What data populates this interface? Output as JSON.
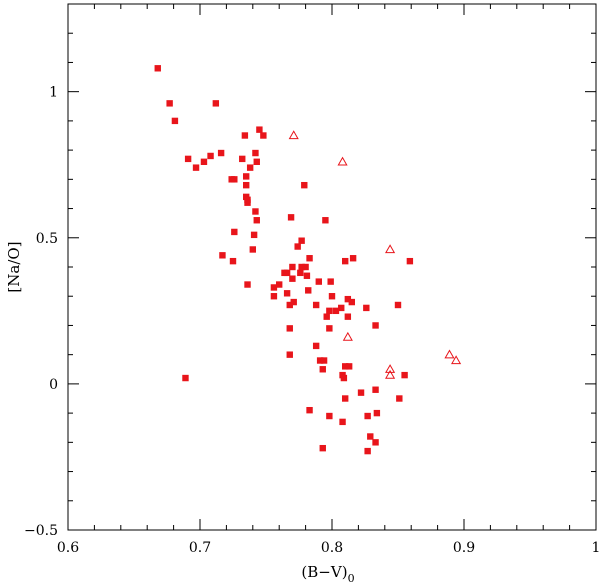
{
  "chart_data": {
    "type": "scatter",
    "title": "",
    "xlabel": "(B−V)",
    "xlabel_subscript": "0",
    "ylabel": "[Na/O]",
    "xlim": [
      0.6,
      1.0
    ],
    "ylim": [
      -0.5,
      1.3
    ],
    "x_ticks": [
      {
        "value": 0.6,
        "label": "0.6"
      },
      {
        "value": 0.7,
        "label": "0.7"
      },
      {
        "value": 0.8,
        "label": "0.8"
      },
      {
        "value": 0.9,
        "label": "0.9"
      },
      {
        "value": 1.0,
        "label": "1"
      }
    ],
    "y_ticks": [
      {
        "value": -0.5,
        "label": "−0.5"
      },
      {
        "value": 0,
        "label": "0"
      },
      {
        "value": 0.5,
        "label": "0.5"
      },
      {
        "value": 1,
        "label": "1"
      }
    ],
    "grid": false,
    "legend": "none",
    "colors": {
      "marker": "#e8151b",
      "axis": "#000000"
    },
    "series": [
      {
        "marker": "filled-square",
        "points": [
          [
            0.668,
            1.08
          ],
          [
            0.677,
            0.96
          ],
          [
            0.681,
            0.9
          ],
          [
            0.712,
            0.96
          ],
          [
            0.745,
            0.87
          ],
          [
            0.748,
            0.85
          ],
          [
            0.734,
            0.85
          ],
          [
            0.691,
            0.77
          ],
          [
            0.697,
            0.74
          ],
          [
            0.703,
            0.76
          ],
          [
            0.708,
            0.78
          ],
          [
            0.716,
            0.79
          ],
          [
            0.732,
            0.77
          ],
          [
            0.742,
            0.79
          ],
          [
            0.743,
            0.76
          ],
          [
            0.738,
            0.74
          ],
          [
            0.735,
            0.71
          ],
          [
            0.724,
            0.7
          ],
          [
            0.726,
            0.7
          ],
          [
            0.735,
            0.68
          ],
          [
            0.735,
            0.64
          ],
          [
            0.736,
            0.63
          ],
          [
            0.736,
            0.62
          ],
          [
            0.742,
            0.59
          ],
          [
            0.743,
            0.56
          ],
          [
            0.726,
            0.52
          ],
          [
            0.741,
            0.51
          ],
          [
            0.74,
            0.46
          ],
          [
            0.717,
            0.44
          ],
          [
            0.725,
            0.42
          ],
          [
            0.736,
            0.34
          ],
          [
            0.689,
            0.02
          ],
          [
            0.779,
            0.68
          ],
          [
            0.769,
            0.57
          ],
          [
            0.795,
            0.56
          ],
          [
            0.774,
            0.47
          ],
          [
            0.777,
            0.49
          ],
          [
            0.81,
            0.42
          ],
          [
            0.816,
            0.43
          ],
          [
            0.859,
            0.42
          ],
          [
            0.764,
            0.38
          ],
          [
            0.77,
            0.4
          ],
          [
            0.777,
            0.4
          ],
          [
            0.766,
            0.38
          ],
          [
            0.77,
            0.36
          ],
          [
            0.78,
            0.4
          ],
          [
            0.783,
            0.43
          ],
          [
            0.776,
            0.38
          ],
          [
            0.781,
            0.37
          ],
          [
            0.756,
            0.33
          ],
          [
            0.76,
            0.34
          ],
          [
            0.756,
            0.3
          ],
          [
            0.766,
            0.31
          ],
          [
            0.768,
            0.27
          ],
          [
            0.771,
            0.28
          ],
          [
            0.782,
            0.32
          ],
          [
            0.79,
            0.35
          ],
          [
            0.788,
            0.27
          ],
          [
            0.799,
            0.35
          ],
          [
            0.8,
            0.3
          ],
          [
            0.812,
            0.29
          ],
          [
            0.815,
            0.28
          ],
          [
            0.807,
            0.26
          ],
          [
            0.798,
            0.25
          ],
          [
            0.803,
            0.25
          ],
          [
            0.796,
            0.23
          ],
          [
            0.812,
            0.23
          ],
          [
            0.826,
            0.26
          ],
          [
            0.85,
            0.27
          ],
          [
            0.768,
            0.19
          ],
          [
            0.798,
            0.19
          ],
          [
            0.833,
            0.2
          ],
          [
            0.788,
            0.13
          ],
          [
            0.768,
            0.1
          ],
          [
            0.791,
            0.08
          ],
          [
            0.794,
            0.08
          ],
          [
            0.81,
            0.06
          ],
          [
            0.813,
            0.06
          ],
          [
            0.793,
            0.05
          ],
          [
            0.808,
            0.03
          ],
          [
            0.809,
            0.02
          ],
          [
            0.855,
            0.03
          ],
          [
            0.833,
            -0.02
          ],
          [
            0.822,
            -0.03
          ],
          [
            0.81,
            -0.05
          ],
          [
            0.851,
            -0.05
          ],
          [
            0.783,
            -0.09
          ],
          [
            0.798,
            -0.11
          ],
          [
            0.808,
            -0.13
          ],
          [
            0.834,
            -0.1
          ],
          [
            0.827,
            -0.11
          ],
          [
            0.829,
            -0.18
          ],
          [
            0.833,
            -0.2
          ],
          [
            0.793,
            -0.22
          ],
          [
            0.827,
            -0.23
          ]
        ]
      },
      {
        "marker": "open-triangle",
        "points": [
          [
            0.771,
            0.85
          ],
          [
            0.808,
            0.76
          ],
          [
            0.844,
            0.46
          ],
          [
            0.812,
            0.16
          ],
          [
            0.889,
            0.1
          ],
          [
            0.894,
            0.08
          ],
          [
            0.844,
            0.05
          ],
          [
            0.844,
            0.03
          ]
        ]
      }
    ]
  }
}
